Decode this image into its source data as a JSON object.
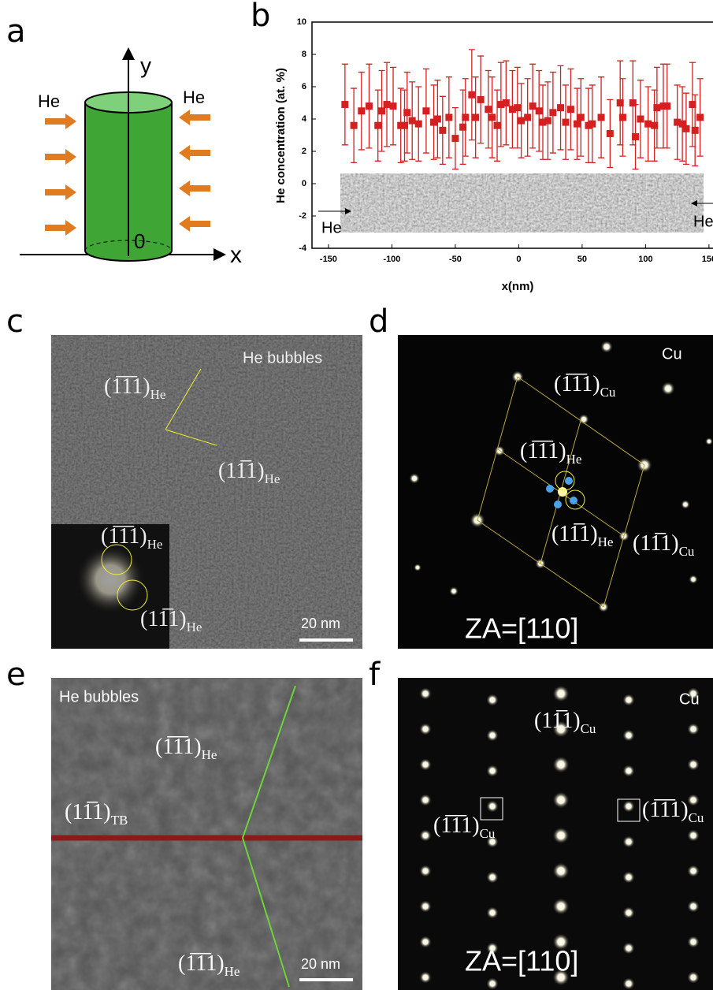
{
  "panel_labels": [
    "a",
    "b",
    "c",
    "d",
    "e",
    "f"
  ],
  "panel_a": {
    "axis_y": "y",
    "axis_x": "x",
    "origin": "0",
    "flux_left": "He",
    "flux_right": "He"
  },
  "chart_data": {
    "type": "scatter",
    "x_label": "x(nm)",
    "y_label": "He concentration (at. %)",
    "x": [
      -137,
      -130,
      -124,
      -118,
      -111,
      -108,
      -104,
      -99,
      -93,
      -90,
      -88,
      -84,
      -79,
      -73,
      -67,
      -64,
      -60,
      -55,
      -50,
      -44,
      -42,
      -37,
      -34,
      -30,
      -24,
      -21,
      -17,
      -14,
      -10,
      -5,
      -1,
      2,
      7,
      11,
      16,
      19,
      23,
      27,
      33,
      37,
      41,
      46,
      49,
      55,
      58,
      65,
      72,
      80,
      82,
      90,
      92,
      96,
      102,
      107,
      109,
      114,
      117,
      125,
      129,
      132,
      137,
      139,
      143
    ],
    "series": [
      {
        "color": "#d42020",
        "values": [
          4.9,
          3.6,
          4.5,
          4.8,
          3.6,
          4.5,
          4.9,
          4.8,
          3.6,
          3.6,
          4.4,
          3.9,
          3.7,
          4.5,
          3.8,
          4.0,
          3.3,
          4.1,
          2.8,
          3.5,
          4.1,
          5.5,
          4.1,
          5.2,
          4.6,
          4.1,
          3.6,
          4.9,
          5.0,
          4.6,
          4.7,
          3.9,
          4.1,
          4.8,
          4.5,
          3.8,
          3.9,
          4.4,
          4.7,
          3.8,
          4.6,
          3.7,
          4.1,
          3.6,
          3.7,
          4.1,
          3.1,
          5.0,
          4.1,
          5.0,
          2.9,
          4.0,
          3.7,
          3.6,
          4.7,
          4.8,
          4.8,
          3.8,
          3.7,
          3.4,
          4.9,
          3.3,
          4.1
        ],
        "errors": [
          2.5,
          2.3,
          2.4,
          2.6,
          2.2,
          2.5,
          2.6,
          2.4,
          2.3,
          2.2,
          2.5,
          2.4,
          2.3,
          2.6,
          2.3,
          2.4,
          2.1,
          2.5,
          1.9,
          2.3,
          2.4,
          2.8,
          2.5,
          2.7,
          2.4,
          2.5,
          2.2,
          2.6,
          2.6,
          2.4,
          2.5,
          2.3,
          2.4,
          2.6,
          2.5,
          2.3,
          2.4,
          2.5,
          2.6,
          2.3,
          2.5,
          2.2,
          2.4,
          2.3,
          2.4,
          2.5,
          2.1,
          2.6,
          2.4,
          2.6,
          2.0,
          2.4,
          2.3,
          2.2,
          2.5,
          2.6,
          2.6,
          2.3,
          2.3,
          2.2,
          2.6,
          2.2,
          2.4
        ]
      }
    ],
    "xlim": [
      -163,
      160
    ],
    "xticks": [
      -150,
      -100,
      -50,
      0,
      50,
      100,
      150
    ],
    "ylim": [
      -4,
      10
    ],
    "yticks": [
      -4,
      -2,
      0,
      2,
      4,
      6,
      8,
      10
    ],
    "image_labels": {
      "left": "He",
      "right": "He"
    }
  },
  "panel_c": {
    "caption": "He bubbles",
    "scale_bar": "20 nm",
    "planes": [
      {
        "index": "(1̅1̅1)",
        "sub": "He"
      },
      {
        "index": "(11̅1)",
        "sub": "He"
      },
      {
        "index": "(1̅1̅1)",
        "sub": "He"
      },
      {
        "index": "(11̅1)",
        "sub": "He"
      }
    ]
  },
  "panel_d": {
    "element": "Cu",
    "zone_axis": "ZA=[110]",
    "planes": [
      {
        "index": "(1̅1̅1)",
        "sub": "Cu"
      },
      {
        "index": "(1̅1̅1)",
        "sub": "He"
      },
      {
        "index": "(11̅1)",
        "sub": "He"
      },
      {
        "index": "(11̅1)",
        "sub": "Cu"
      }
    ]
  },
  "panel_e": {
    "caption": "He bubbles",
    "scale_bar": "20 nm",
    "planes": [
      {
        "index": "(1̅1̅1)",
        "sub": "He"
      },
      {
        "index": "(11̅1)",
        "sub": "TB"
      },
      {
        "index": "(1̅1̅1)",
        "sub": "He"
      }
    ]
  },
  "panel_f": {
    "element": "Cu",
    "zone_axis": "ZA=[110]",
    "planes": [
      {
        "index": "(11̅1)",
        "sub": "Cu"
      },
      {
        "index": "(1̅1̅1)",
        "sub": "Cu"
      },
      {
        "index": "(1̅1̅1)",
        "sub": "Cu"
      }
    ]
  }
}
